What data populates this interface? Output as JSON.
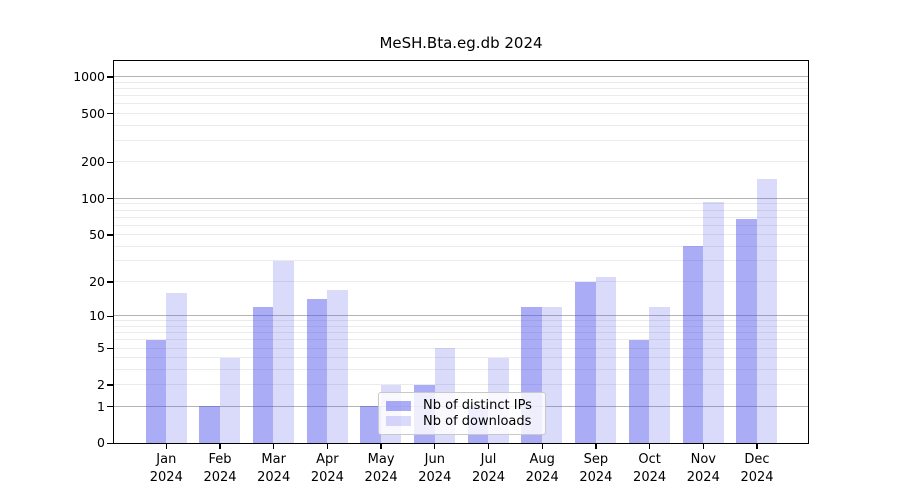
{
  "title": "MeSH.Bta.eg.db 2024",
  "colors": {
    "distinct_ips_bar": "rgba(68,72,235,0.45)",
    "downloads_bar": "rgba(68,72,235,0.2)",
    "major_grid": "#b4b4b4",
    "minor_grid": "#ebebeb",
    "axis": "#000000"
  },
  "legend": {
    "items": [
      {
        "label": "Nb of distinct IPs",
        "color": "rgba(68,72,235,0.45)"
      },
      {
        "label": "Nb of downloads",
        "color": "rgba(68,72,235,0.2)"
      }
    ]
  },
  "chart_data": {
    "type": "bar",
    "title": "MeSH.Bta.eg.db 2024",
    "categories": [
      "Jan 2024",
      "Feb 2024",
      "Mar 2024",
      "Apr 2024",
      "May 2024",
      "Jun 2024",
      "Jul 2024",
      "Aug 2024",
      "Sep 2024",
      "Oct 2024",
      "Nov 2024",
      "Dec 2024"
    ],
    "month_line": [
      "Jan",
      "Feb",
      "Mar",
      "Apr",
      "May",
      "Jun",
      "Jul",
      "Aug",
      "Sep",
      "Oct",
      "Nov",
      "Dec"
    ],
    "year_line": "2024",
    "series": [
      {
        "name": "Nb of distinct IPs",
        "color": "rgba(68,72,235,0.45)",
        "values": [
          6,
          1,
          12,
          14,
          1,
          2,
          1,
          12,
          20,
          6,
          40,
          68
        ]
      },
      {
        "name": "Nb of downloads",
        "color": "rgba(68,72,235,0.2)",
        "values": [
          16,
          4,
          30,
          17,
          2,
          5,
          4,
          12,
          22,
          12,
          94,
          144
        ]
      }
    ],
    "y_scale": "log1p",
    "y_ticks": [
      0,
      1,
      2,
      5,
      10,
      20,
      50,
      100,
      200,
      500,
      1000
    ],
    "y_major_gridlines": [
      1,
      10,
      100,
      1000
    ],
    "y_minor_gridline_pattern": [
      2,
      3,
      4,
      5,
      6,
      7,
      8,
      9
    ],
    "ylim": [
      0,
      1300
    ],
    "xlabel": "",
    "ylabel": "",
    "grid": true,
    "legend_position": "lower-center"
  }
}
